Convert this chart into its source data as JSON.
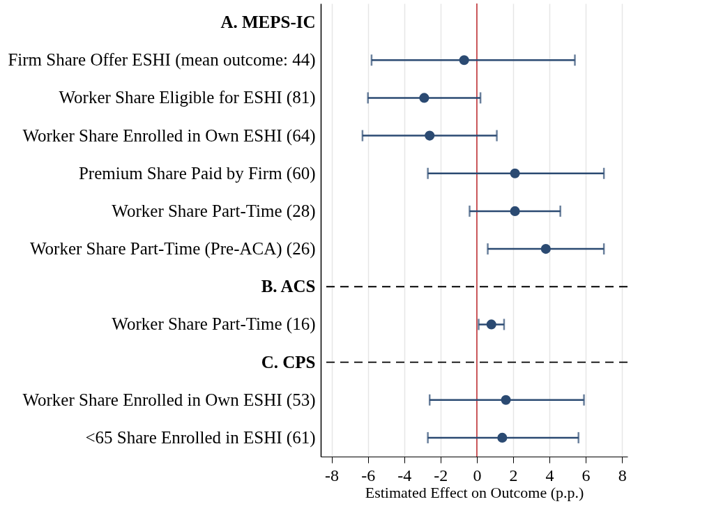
{
  "chart_data": {
    "type": "scatter",
    "orientation": "horizontal",
    "categories": [
      "A. MEPS-IC",
      "Firm Share Offer ESHI (mean outcome: 44)",
      "Worker Share Eligible for ESHI (81)",
      "Worker Share Enrolled in Own ESHI (64)",
      "Premium Share Paid by Firm (60)",
      "Worker Share Part-Time (28)",
      "Worker Share Part-Time (Pre-ACA) (26)",
      "B. ACS",
      "Worker Share Part-Time (16)",
      "C. CPS",
      "Worker Share Enrolled in Own ESHI (53)",
      "<65 Share Enrolled in ESHI (61)"
    ],
    "series": [
      {
        "color": "#2b4a72",
        "values": [
          null,
          -0.7,
          -2.9,
          -2.6,
          2.1,
          2.1,
          3.8,
          null,
          0.8,
          null,
          1.6,
          1.4
        ],
        "errors": [
          null,
          [
            -5.8,
            5.4
          ],
          [
            -6.0,
            0.2
          ],
          [
            -6.3,
            1.1
          ],
          [
            -2.7,
            7.0
          ],
          [
            -0.4,
            4.6
          ],
          [
            0.6,
            7.0
          ],
          null,
          [
            0.1,
            1.5
          ],
          null,
          [
            -2.6,
            5.9
          ],
          [
            -2.7,
            5.6
          ]
        ]
      }
    ],
    "xlabel": "Estimated Effect on Outcome (p.p.)",
    "xlim": [
      -8.6,
      8.3
    ],
    "xticks": [
      -8,
      -6,
      -4,
      -2,
      0,
      2,
      4,
      6,
      8
    ],
    "grid": "x",
    "marker": "circle",
    "ref_lines": [
      {
        "axis": "x",
        "value": 0,
        "color": "#c0282d",
        "line_style": "solid"
      },
      {
        "axis": "y",
        "value": "B. ACS",
        "color": "#000000",
        "line_style": "dashed"
      },
      {
        "axis": "y",
        "value": "C. CPS",
        "color": "#000000",
        "line_style": "dashed"
      }
    ]
  }
}
